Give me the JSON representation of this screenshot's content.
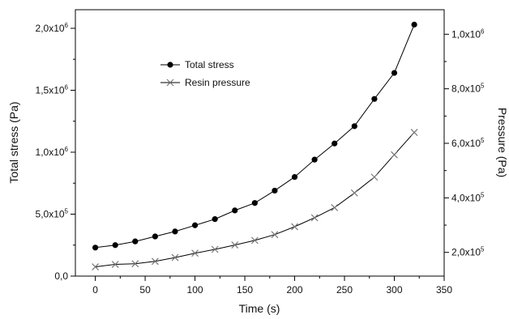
{
  "chart_data": {
    "type": "line",
    "xlabel": "Time (s)",
    "ylabel": "Total stress (Pa)",
    "ylabel_right": "Pressure (Pa)",
    "xlim": [
      -20,
      350
    ],
    "ylim": [
      0,
      2150000
    ],
    "ylim_right": [
      113000,
      1090000
    ],
    "x_ticks": [
      0,
      50,
      100,
      150,
      200,
      250,
      300,
      350
    ],
    "x_tick_labels": [
      "0",
      "50",
      "100",
      "150",
      "200",
      "250",
      "300",
      "350"
    ],
    "y_ticks": [
      0,
      500000,
      1000000,
      1500000,
      2000000
    ],
    "y_tick_labels": [
      {
        "base": "0,0",
        "exp": ""
      },
      {
        "base": "5,0x10",
        "exp": "5"
      },
      {
        "base": "1,0x10",
        "exp": "6"
      },
      {
        "base": "1,5x10",
        "exp": "6"
      },
      {
        "base": "2,0x10",
        "exp": "6"
      }
    ],
    "y_right_ticks": [
      200000,
      400000,
      600000,
      800000,
      1000000
    ],
    "y_right_tick_labels": [
      {
        "base": "2,0x10",
        "exp": "5"
      },
      {
        "base": "4,0x10",
        "exp": "5"
      },
      {
        "base": "6,0x10",
        "exp": "5"
      },
      {
        "base": "8,0x10",
        "exp": "5"
      },
      {
        "base": "1,0x10",
        "exp": "6"
      }
    ],
    "legend_position": "top-left",
    "grid": false,
    "series": [
      {
        "name": "Total stress",
        "axis": "left",
        "marker": "circle",
        "color": "#000000",
        "x": [
          0,
          20,
          40,
          60,
          80,
          100,
          120,
          140,
          160,
          180,
          200,
          220,
          240,
          260,
          280,
          300,
          320
        ],
        "y": [
          230000,
          250000,
          280000,
          320000,
          360000,
          410000,
          460000,
          530000,
          590000,
          690000,
          800000,
          940000,
          1070000,
          1210000,
          1430000,
          1640000,
          2030000
        ]
      },
      {
        "name": "Resin pressure",
        "axis": "right",
        "marker": "x",
        "color": "#777777",
        "x": [
          0,
          20,
          40,
          60,
          80,
          100,
          120,
          140,
          160,
          180,
          200,
          220,
          240,
          260,
          280,
          300,
          320
        ],
        "y": [
          147000,
          156000,
          158000,
          167000,
          181000,
          197000,
          211000,
          227000,
          244000,
          265000,
          294000,
          327000,
          364000,
          418000,
          476000,
          558000,
          640000
        ]
      }
    ]
  }
}
